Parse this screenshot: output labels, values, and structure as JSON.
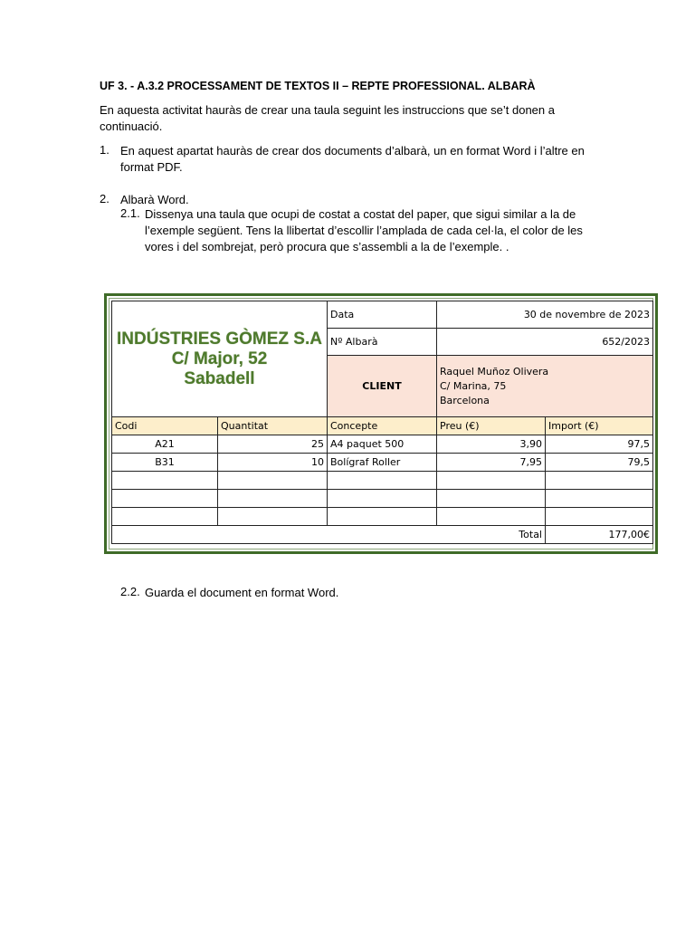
{
  "title": "UF 3. - A.3.2 PROCESSAMENT DE TEXTOS II – REPTE PROFESSIONAL. ALBARÀ",
  "intro": "En aquesta activitat hauràs de crear una taula seguint les instruccions que se’t donen a continuació.",
  "items": [
    {
      "num": "1.",
      "text": "En aquest apartat hauràs de crear dos documents d’albarà, un en format Word i l’altre en format PDF."
    },
    {
      "num": "2.",
      "text": "Albarà Word."
    },
    {
      "num": "2.1.",
      "text": "Dissenya una taula que ocupi de costat a costat del paper, que sigui similar a la de l’exemple següent. Tens la llibertat d’escollir l’amplada de cada cel·la, el color de les vores i del sombrejat, però procura que s’assembli a la de l’exemple. ."
    },
    {
      "num": "2.2.",
      "text": "Guarda el document en format Word."
    }
  ],
  "albara": {
    "company": [
      "INDÚSTRIES GÒMEZ S.A",
      "C/ Major, 52",
      "Sabadell"
    ],
    "date_label": "Data",
    "date_value": "30 de novembre de 2023",
    "number_label": "Nº Albarà",
    "number_value": "652/2023",
    "client_label": "CLIENT",
    "client_lines": [
      "Raquel Muñoz Olivera",
      "C/ Marina, 75",
      "Barcelona"
    ],
    "headers": [
      "Codi",
      "Quantitat",
      "Concepte",
      "Preu (€)",
      "Import (€)"
    ],
    "rows": [
      [
        "A21",
        "25",
        "A4 paquet 500",
        "3,90",
        "97,5"
      ],
      [
        "B31",
        "10",
        "Bolígraf Roller",
        "7,95",
        "79,5"
      ],
      [
        "",
        "",
        "",
        "",
        ""
      ],
      [
        "",
        "",
        "",
        "",
        ""
      ],
      [
        "",
        "",
        "",
        "",
        ""
      ]
    ],
    "total_label": "Total",
    "total_value": "177,00€"
  },
  "colors": {
    "frame": "#3f6b28",
    "company_text": "#4e7a2c",
    "client_bg": "#fbe3d8",
    "header_bg": "#fdeecb"
  }
}
